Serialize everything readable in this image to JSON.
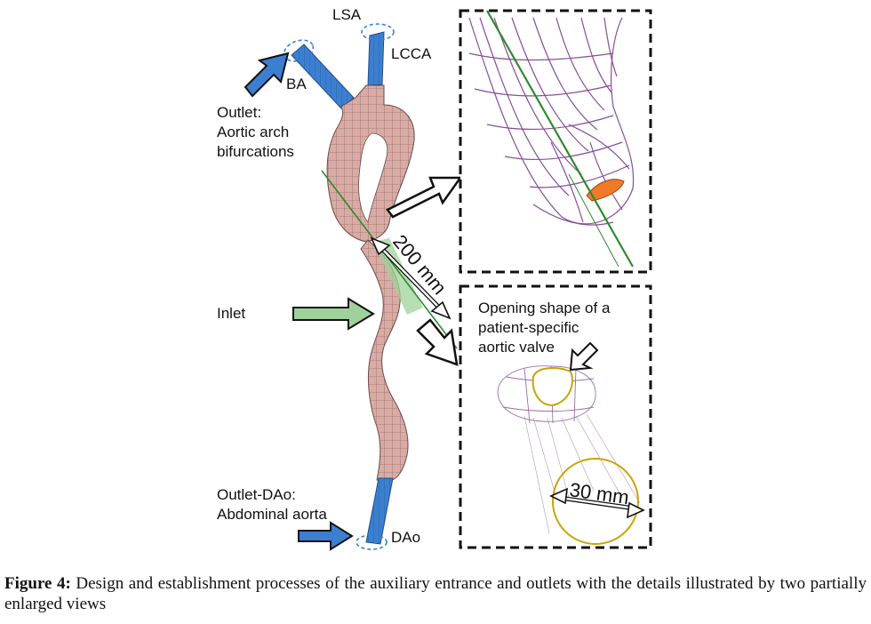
{
  "labels": {
    "lsa": "LSA",
    "lcca": "LCCA",
    "ba": "BA",
    "outlet_line1": "Outlet:",
    "outlet_line2": "Aortic arch",
    "outlet_line3": "bifurcations",
    "inlet": "Inlet",
    "outlet_dao_line1": "Outlet-DAo:",
    "outlet_dao_line2": "Abdominal aorta",
    "dao": "DAo",
    "dim_200": "200 mm",
    "opening_line1": "Opening shape of a",
    "opening_line2": "patient-specific",
    "opening_line3": "aortic valve",
    "dim_30": "30 mm"
  },
  "caption": {
    "label": "Figure 4:",
    "text": " Design and establishment processes of the auxiliary entrance and outlets with the details illustrated by two partially enlarged views"
  },
  "colors": {
    "vessel": "#d9aba4",
    "mesh": "#7a5a58",
    "extension": "#3c7fd0",
    "inlet_green": "#9fd19a",
    "axis_green": "#2f8a2f",
    "wire": "#7b3b8a",
    "valve_orange": "#ee7a2a",
    "valve_outline": "#c8a400"
  }
}
